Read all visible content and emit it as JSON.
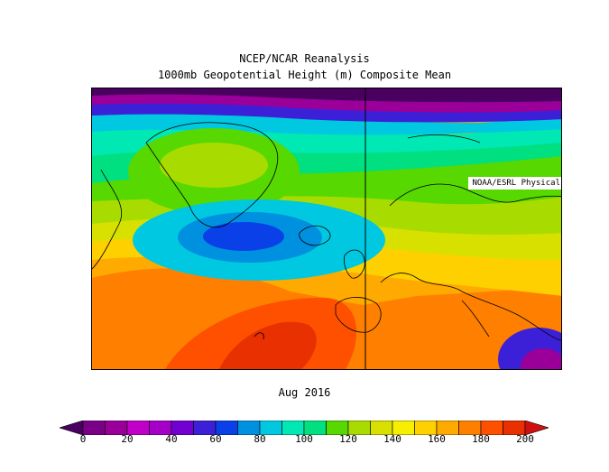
{
  "header": {
    "title": "NCEP/NCAR Reanalysis",
    "subtitle": "1000mb Geopotential Height (m) Composite Mean"
  },
  "map": {
    "credit": "NOAA/ESRL Physical Sciences Division",
    "period": "Aug 2016",
    "region": "North Atlantic and Europe",
    "features": {
      "greenland_high": "green (about 120 m)",
      "atlantic_low_south_of_greenland": "blue (about 60 m)",
      "azores_high": "red (about 190-200 m)",
      "eastern_mediterranean_low": "purple (about 20-40 m)"
    }
  },
  "colorbar": {
    "min": 0,
    "max": 200,
    "step": 10,
    "tick_labels": [
      "0",
      "20",
      "40",
      "60",
      "80",
      "100",
      "120",
      "140",
      "160",
      "180",
      "200"
    ],
    "colors": [
      "#7a0088",
      "#9a0099",
      "#c000c8",
      "#a400c8",
      "#7200d0",
      "#3c20d8",
      "#0a40e8",
      "#0090e0",
      "#00c8e0",
      "#00e8b4",
      "#00e080",
      "#56d800",
      "#a8dc00",
      "#d8e000",
      "#f6f000",
      "#ffd000",
      "#ffaa00",
      "#ff8000",
      "#ff5000",
      "#e83000"
    ],
    "below_color": "#4a0060",
    "above_color": "#d01010"
  }
}
